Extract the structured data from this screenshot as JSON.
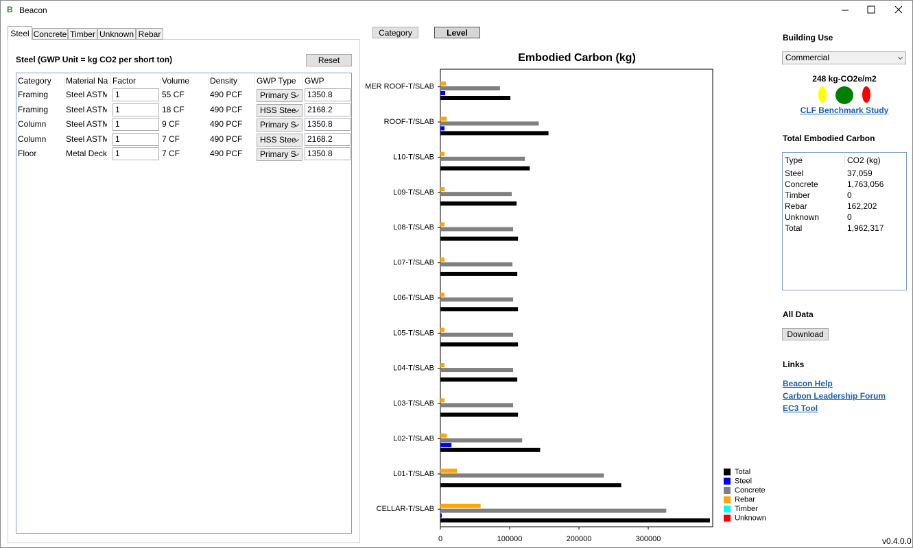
{
  "window": {
    "icon": "B",
    "title": "Beacon"
  },
  "tabs": [
    "Steel",
    "Concrete",
    "Timber",
    "Unknown",
    "Rebar"
  ],
  "steel_panel": {
    "heading": "Steel (GWP Unit = kg CO2 per short ton)",
    "reset_button": "Reset",
    "table": {
      "columns": [
        "Category",
        "Material Nan",
        "Factor",
        "Volume",
        "Density",
        "GWP Type",
        "GWP"
      ],
      "rows": [
        [
          "Framing",
          "Steel ASTM A",
          "1",
          "55 CF",
          "490 PCF",
          "Primary S",
          "1350.8"
        ],
        [
          "Framing",
          "Steel ASTM A",
          "1",
          "18 CF",
          "490 PCF",
          "HSS Stee",
          "2168.2"
        ],
        [
          "Column",
          "Steel ASTM A",
          "1",
          "9 CF",
          "490 PCF",
          "Primary S",
          "1350.8"
        ],
        [
          "Column",
          "Steel ASTM A",
          "1",
          "7 CF",
          "490 PCF",
          "HSS Stee",
          "2168.2"
        ],
        [
          "Floor",
          "Metal Deck",
          "1",
          "7 CF",
          "490 PCF",
          "Primary S",
          "1350.8"
        ]
      ]
    }
  },
  "view_buttons": [
    "Category",
    "Level"
  ],
  "chart_data": {
    "type": "bar",
    "orientation": "horizontal",
    "title": "Embodied Carbon (kg)",
    "categories": [
      "MER ROOF-T/SLAB",
      "ROOF-T/SLAB",
      "L10-T/SLAB",
      "L09-T/SLAB",
      "L08-T/SLAB",
      "L07-T/SLAB",
      "L06-T/SLAB",
      "L05-T/SLAB",
      "L04-T/SLAB",
      "L03-T/SLAB",
      "L02-T/SLAB",
      "L01-T/SLAB",
      "CELLAR-T/SLAB"
    ],
    "series": [
      {
        "name": "Total",
        "color": "#000000",
        "values": [
          101000,
          156000,
          129000,
          110000,
          112000,
          111000,
          112000,
          112000,
          111000,
          112000,
          144000,
          261000,
          389000
        ]
      },
      {
        "name": "Steel",
        "color": "#0000ff",
        "values": [
          7000,
          6000,
          0,
          0,
          0,
          0,
          0,
          0,
          0,
          0,
          16000,
          0,
          2000
        ]
      },
      {
        "name": "Concrete",
        "color": "#808080",
        "values": [
          86000,
          142000,
          122000,
          103000,
          105000,
          104000,
          105000,
          105000,
          105000,
          105000,
          118000,
          236000,
          326000
        ]
      },
      {
        "name": "Rebar",
        "color": "#ffa500",
        "values": [
          8000,
          9000,
          6000,
          6000,
          6000,
          6000,
          6000,
          6000,
          6000,
          6000,
          9000,
          24000,
          58000
        ]
      },
      {
        "name": "Timber",
        "color": "#00ffff",
        "values": [
          0,
          0,
          0,
          0,
          0,
          0,
          0,
          0,
          0,
          0,
          0,
          0,
          0
        ]
      },
      {
        "name": "Unknown",
        "color": "#ff0000",
        "values": [
          0,
          0,
          0,
          0,
          0,
          0,
          0,
          0,
          0,
          0,
          0,
          0,
          0
        ]
      }
    ],
    "xlim": [
      0,
      393000
    ],
    "xticks": [
      0,
      100000,
      200000,
      300000
    ],
    "grid": false,
    "legend": "bottom-right"
  },
  "sidebar": {
    "building_use_label": "Building Use",
    "building_use": "Commercial",
    "intensity": "248 kg-CO2e/m2",
    "benchmark_link": "CLF Benchmark Study",
    "total_heading": "Total Embodied Carbon",
    "totals_table": {
      "columns": [
        "Type",
        "CO2 (kg)"
      ],
      "rows": [
        [
          "Steel",
          "37,059"
        ],
        [
          "Concrete",
          "1,763,056"
        ],
        [
          "Timber",
          "0"
        ],
        [
          "Rebar",
          "162,202"
        ],
        [
          "Unknown",
          "0"
        ],
        [
          "Total",
          "1,962,317"
        ]
      ]
    },
    "all_data_label": "All Data",
    "download_button": "Download",
    "links_heading": "Links",
    "links": [
      "Beacon Help",
      "Carbon Leadership Forum",
      "EC3 Tool"
    ]
  },
  "version": "v0.4.0.0"
}
